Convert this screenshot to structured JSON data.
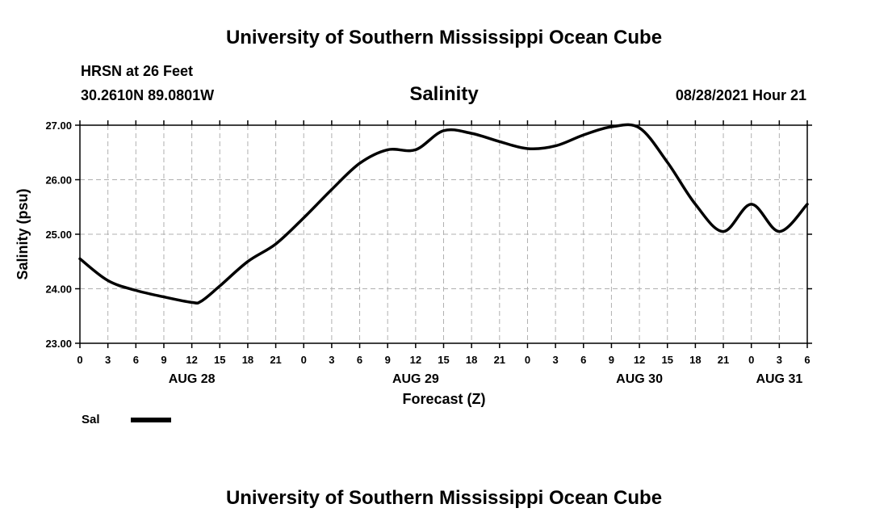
{
  "header": {
    "title_top": "University of Southern Mississippi Ocean Cube",
    "station": "HRSN at 26 Feet",
    "coords": "30.2610N  89.0801W",
    "variable": "Salinity",
    "datetime": "08/28/2021 Hour 21",
    "title_bottom": "University of Southern Mississippi Ocean Cube"
  },
  "legend": {
    "label": "Sal"
  },
  "colors": {
    "line": "#000000",
    "grid": "#b0b0b0",
    "axis": "#000000"
  },
  "chart_data": {
    "type": "line",
    "title": "Salinity",
    "xlabel": "Forecast (Z)",
    "ylabel": "Salinity (psu)",
    "ylim": [
      23.0,
      27.0
    ],
    "yticks": [
      "23.00",
      "24.00",
      "25.00",
      "26.00",
      "27.00"
    ],
    "xlim_hours": [
      0,
      78
    ],
    "xtick_labels": [
      "0",
      "3",
      "6",
      "9",
      "12",
      "15",
      "18",
      "21",
      "0",
      "3",
      "6",
      "9",
      "12",
      "15",
      "18",
      "21",
      "0",
      "3",
      "6",
      "9",
      "12",
      "15",
      "18",
      "21",
      "0",
      "3",
      "6"
    ],
    "day_labels": [
      {
        "label": "AUG 28",
        "hour": 12
      },
      {
        "label": "AUG 29",
        "hour": 36
      },
      {
        "label": "AUG 30",
        "hour": 60
      },
      {
        "label": "AUG 31",
        "hour": 75
      }
    ],
    "grid": true,
    "series": [
      {
        "name": "Sal",
        "x_hours": [
          0,
          3,
          6,
          9,
          12,
          13,
          15,
          18,
          21,
          24,
          27,
          30,
          33,
          36,
          39,
          42,
          45,
          48,
          51,
          54,
          57,
          60,
          63,
          66,
          69,
          72,
          75,
          78
        ],
        "values": [
          24.55,
          24.15,
          23.97,
          23.85,
          23.75,
          23.77,
          24.05,
          24.5,
          24.82,
          25.3,
          25.82,
          26.3,
          26.55,
          26.55,
          26.9,
          26.85,
          26.7,
          26.57,
          26.62,
          26.82,
          26.97,
          26.95,
          26.32,
          25.55,
          25.05,
          25.55,
          25.05,
          25.55
        ]
      }
    ]
  }
}
